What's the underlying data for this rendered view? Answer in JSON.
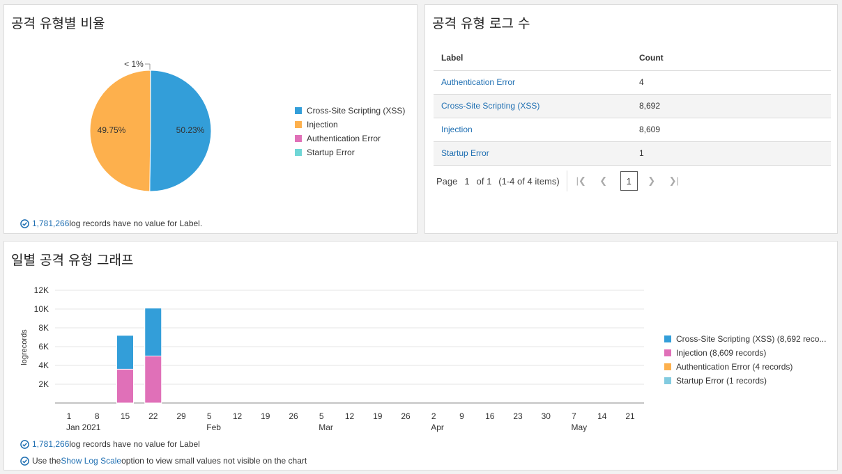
{
  "pie_panel": {
    "title": "공격 유형별 비율",
    "slice_labels": {
      "small": "< 1%",
      "left": "49.75%",
      "right": "50.23%"
    },
    "legend": [
      {
        "label": "Cross-Site Scripting (XSS)",
        "color": "#339ed9"
      },
      {
        "label": "Injection",
        "color": "#fdb04d"
      },
      {
        "label": "Authentication Error",
        "color": "#e070b8"
      },
      {
        "label": "Startup Error",
        "color": "#6fd6d6"
      }
    ],
    "note": {
      "count": "1,781,266",
      "text": " log records have no value for Label.",
      "icon": "check-circle-icon"
    }
  },
  "table_panel": {
    "title": "공격 유형 로그 수",
    "columns": [
      "Label",
      "Count"
    ],
    "rows": [
      {
        "label": "Authentication Error",
        "count": "4"
      },
      {
        "label": "Cross-Site Scripting (XSS)",
        "count": "8,692"
      },
      {
        "label": "Injection",
        "count": "8,609"
      },
      {
        "label": "Startup Error",
        "count": "1"
      }
    ],
    "pager": {
      "page_label": "Page",
      "page": "1",
      "of": "of 1",
      "items": "(1-4 of 4 items)",
      "current": "1"
    }
  },
  "bar_panel": {
    "title": "일별 공격 유형 그래프",
    "legend": [
      {
        "label": "Cross-Site Scripting (XSS) (8,692 reco...",
        "color": "#339ed9"
      },
      {
        "label": "Injection (8,609 records)",
        "color": "#e070b8"
      },
      {
        "label": "Authentication Error (4 records)",
        "color": "#fdb04d"
      },
      {
        "label": "Startup Error (1 records)",
        "color": "#82cbe0"
      }
    ],
    "note1": {
      "count": "1,781,266",
      "text": " log records have no value for Label"
    },
    "note2": {
      "pre": "Use the ",
      "link": "Show Log Scale",
      "post": " option to view small values not visible on the chart"
    }
  },
  "chart_data": [
    {
      "type": "pie",
      "categories": [
        "Cross-Site Scripting (XSS)",
        "Injection",
        "Authentication Error",
        "Startup Error"
      ],
      "values": [
        50.23,
        49.75,
        0.02,
        0.01
      ],
      "labels": [
        "50.23%",
        "49.75%",
        "< 1%",
        ""
      ],
      "colors": [
        "#339ed9",
        "#fdb04d",
        "#e070b8",
        "#6fd6d6"
      ]
    },
    {
      "type": "bar",
      "stacked": true,
      "ylabel": "logrecords",
      "ylim": [
        0,
        12000
      ],
      "yticks": [
        2000,
        4000,
        6000,
        8000,
        10000,
        12000
      ],
      "ytick_labels": [
        "2K",
        "4K",
        "6K",
        "8K",
        "10K",
        "12K"
      ],
      "x_ticks": [
        {
          "day": "1",
          "month": "Jan 2021"
        },
        {
          "day": "8",
          "month": ""
        },
        {
          "day": "15",
          "month": ""
        },
        {
          "day": "22",
          "month": ""
        },
        {
          "day": "29",
          "month": ""
        },
        {
          "day": "5",
          "month": "Feb"
        },
        {
          "day": "12",
          "month": ""
        },
        {
          "day": "19",
          "month": ""
        },
        {
          "day": "26",
          "month": ""
        },
        {
          "day": "5",
          "month": "Mar"
        },
        {
          "day": "12",
          "month": ""
        },
        {
          "day": "19",
          "month": ""
        },
        {
          "day": "26",
          "month": ""
        },
        {
          "day": "2",
          "month": "Apr"
        },
        {
          "day": "9",
          "month": ""
        },
        {
          "day": "16",
          "month": ""
        },
        {
          "day": "23",
          "month": ""
        },
        {
          "day": "30",
          "month": ""
        },
        {
          "day": "7",
          "month": "May"
        },
        {
          "day": "14",
          "month": ""
        },
        {
          "day": "21",
          "month": ""
        }
      ],
      "bars": [
        {
          "week": "2021-01-15",
          "series": [
            {
              "name": "Injection",
              "value": 3600,
              "color": "#e070b8"
            },
            {
              "name": "Cross-Site Scripting (XSS)",
              "value": 3600,
              "color": "#339ed9"
            }
          ]
        },
        {
          "week": "2021-01-22",
          "series": [
            {
              "name": "Injection",
              "value": 5000,
              "color": "#e070b8"
            },
            {
              "name": "Cross-Site Scripting (XSS)",
              "value": 5100,
              "color": "#339ed9"
            }
          ]
        }
      ],
      "grid": true,
      "legend": "right"
    }
  ]
}
